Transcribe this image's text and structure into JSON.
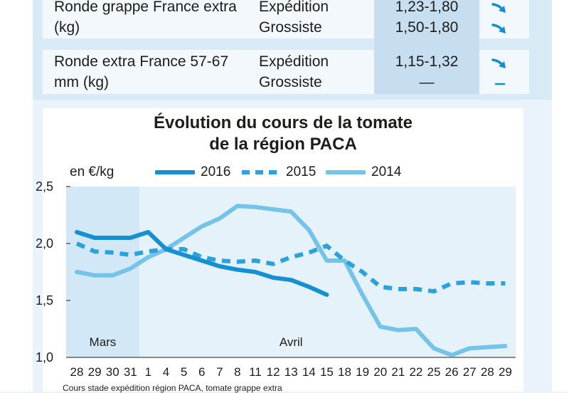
{
  "table": {
    "rows": [
      {
        "product": "Ronde grappe France extra (kg)",
        "channel_1": "Expédition",
        "channel_2": "Grossiste",
        "price_1": "1,23-1,80",
        "price_2": "1,50-1,80",
        "trend_1": "down-arrow",
        "trend_2": "down-arrow"
      },
      {
        "product": "Ronde extra France 57-67 mm (kg)",
        "channel_1": "Expédition",
        "channel_2": "Grossiste",
        "price_1": "1,15-1,32",
        "price_2": "—",
        "trend_1": "down-arrow",
        "trend_2": "dash"
      }
    ]
  },
  "colors": {
    "accent": "#0f8fcf",
    "line_2016": "#1590d0",
    "line_2015": "#29a2dd",
    "line_2014": "#74c4ea",
    "shade": "#d3e8f6"
  },
  "chart_data": {
    "type": "line",
    "title": "Évolution du cours de la tomate",
    "subtitle": "de la région PACA",
    "ylabel": "en €/kg",
    "ylim": [
      1.0,
      2.5
    ],
    "yticks": [
      "2,5",
      "2,0",
      "1,5",
      "1,0"
    ],
    "categories": [
      "28",
      "29",
      "30",
      "31",
      "1",
      "4",
      "5",
      "6",
      "7",
      "8",
      "11",
      "12",
      "13",
      "14",
      "15",
      "18",
      "19",
      "20",
      "21",
      "22",
      "25",
      "26",
      "27",
      "28",
      "29"
    ],
    "month_labels": [
      "Mars",
      "Avril"
    ],
    "legend_placement": "top",
    "series": [
      {
        "name": "2016",
        "style": "solid",
        "values": [
          2.1,
          2.05,
          2.05,
          2.05,
          2.1,
          1.95,
          1.9,
          1.85,
          1.8,
          1.77,
          1.75,
          1.7,
          1.68,
          1.62,
          1.55,
          null,
          null,
          null,
          null,
          null,
          null,
          null,
          null,
          null,
          null
        ]
      },
      {
        "name": "2015",
        "style": "dashed",
        "values": [
          2.0,
          1.93,
          1.92,
          1.9,
          1.93,
          1.95,
          1.95,
          1.88,
          1.85,
          1.84,
          1.85,
          1.82,
          1.88,
          1.92,
          1.98,
          1.85,
          1.75,
          1.62,
          1.6,
          1.6,
          1.58,
          1.65,
          1.66,
          1.65,
          1.65
        ]
      },
      {
        "name": "2014",
        "style": "solid",
        "values": [
          1.75,
          1.72,
          1.72,
          1.78,
          1.88,
          1.95,
          2.05,
          2.15,
          2.22,
          2.33,
          2.32,
          2.3,
          2.28,
          2.12,
          1.85,
          1.85,
          1.55,
          1.27,
          1.24,
          1.25,
          1.08,
          1.02,
          1.08,
          1.09,
          1.1
        ]
      }
    ],
    "caption": "Cours stade expédition région PACA, tomate grappe extra"
  }
}
